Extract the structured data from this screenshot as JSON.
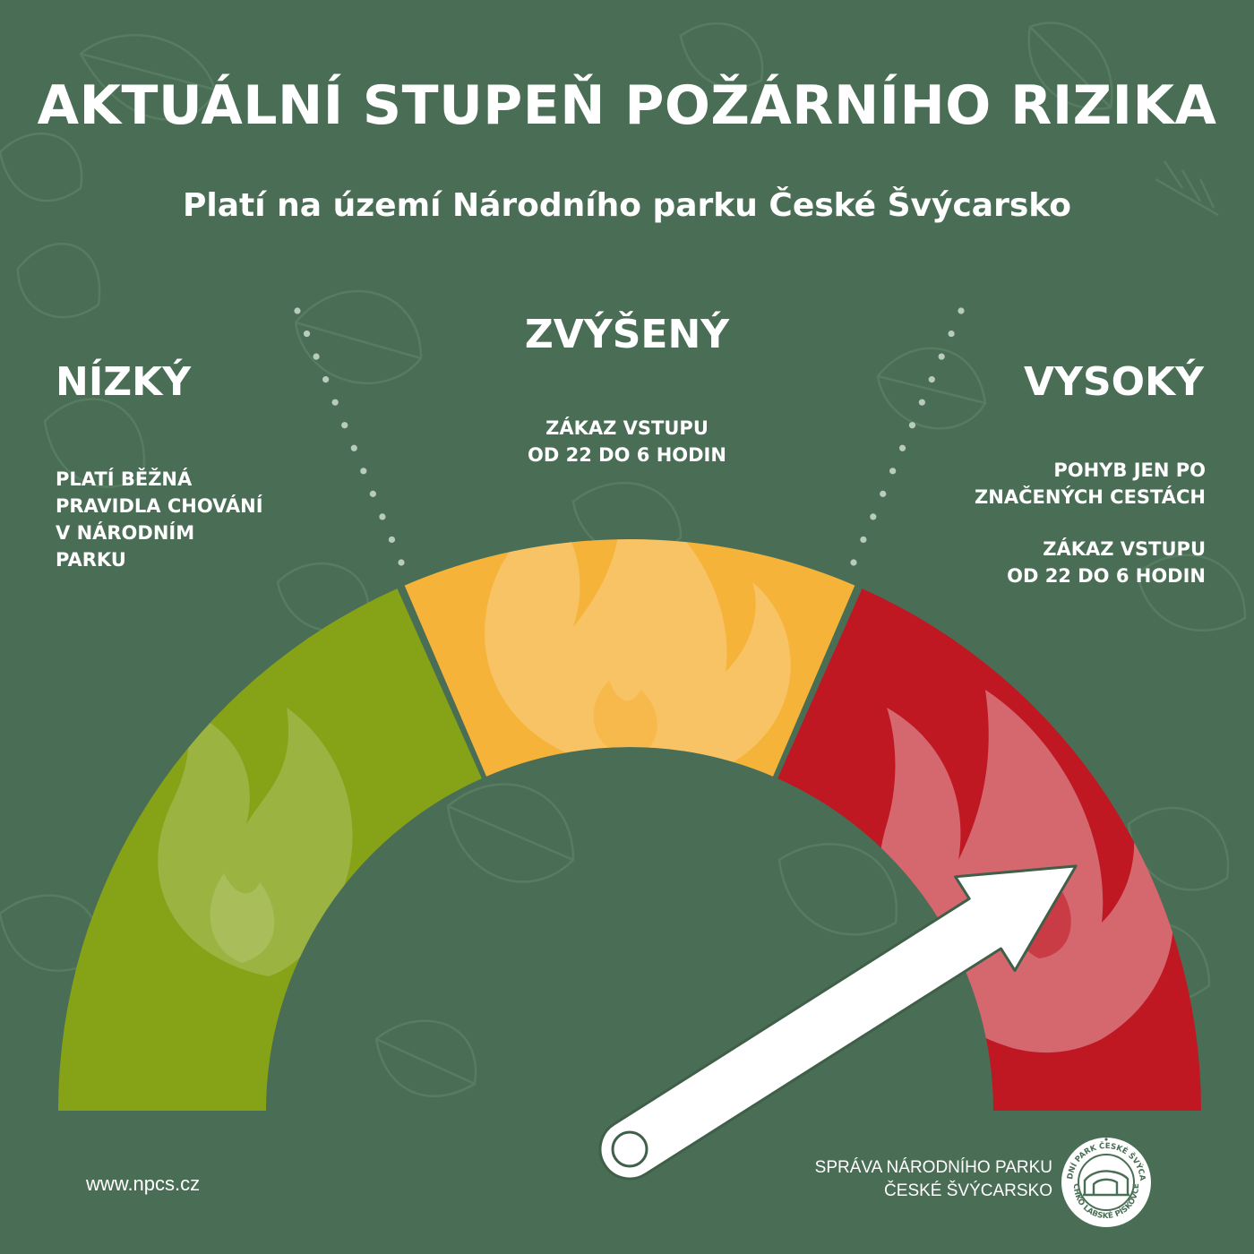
{
  "title": "AKTUÁLNÍ STUPEŇ POŽÁRNÍHO RIZIKA",
  "subtitle": "Platí na území Národního parku České Švýcarsko",
  "levels": {
    "low": {
      "heading": "NÍZKÝ",
      "note_lines": [
        "PLATÍ BĚŽNÁ",
        "PRAVIDLA CHOVÁNÍ",
        "V NÁRODNÍM",
        "PARKU"
      ],
      "color": "#86a318"
    },
    "elevated": {
      "heading": "ZVÝŠENÝ",
      "note_lines": [
        "ZÁKAZ VSTUPU",
        "OD 22 DO 6 HODIN"
      ],
      "color": "#f6b33a"
    },
    "high": {
      "heading": "VYSOKÝ",
      "note1_lines": [
        "POHYB JEN PO",
        "ZNAČENÝCH CESTÁCH"
      ],
      "note2_lines": [
        "ZÁKAZ VSTUPU",
        "OD 22 DO 6 HODIN"
      ],
      "color": "#bf1823"
    }
  },
  "indicator": {
    "current_level": "VYSOKÝ",
    "position_fraction": 0.82
  },
  "footer": {
    "website": "www.npcs.cz",
    "org_lines": [
      "SPRÁVA NÁRODNÍHO PARKU",
      "ČESKÉ ŠVÝCARSKO"
    ]
  },
  "logo": {
    "ring_top": "NÁRODNÍ PARK ČESKÉ ŠVÝCARSKO",
    "ring_bottom": "CHKO LABSKÉ PÍSKOVCE"
  },
  "colors": {
    "background": "#4a6e55",
    "divider": "#2f5a3c",
    "text": "#ffffff"
  },
  "icons": [
    "flame-icon",
    "gauge-needle-icon",
    "leaf-pattern-icon",
    "park-logo-icon"
  ]
}
